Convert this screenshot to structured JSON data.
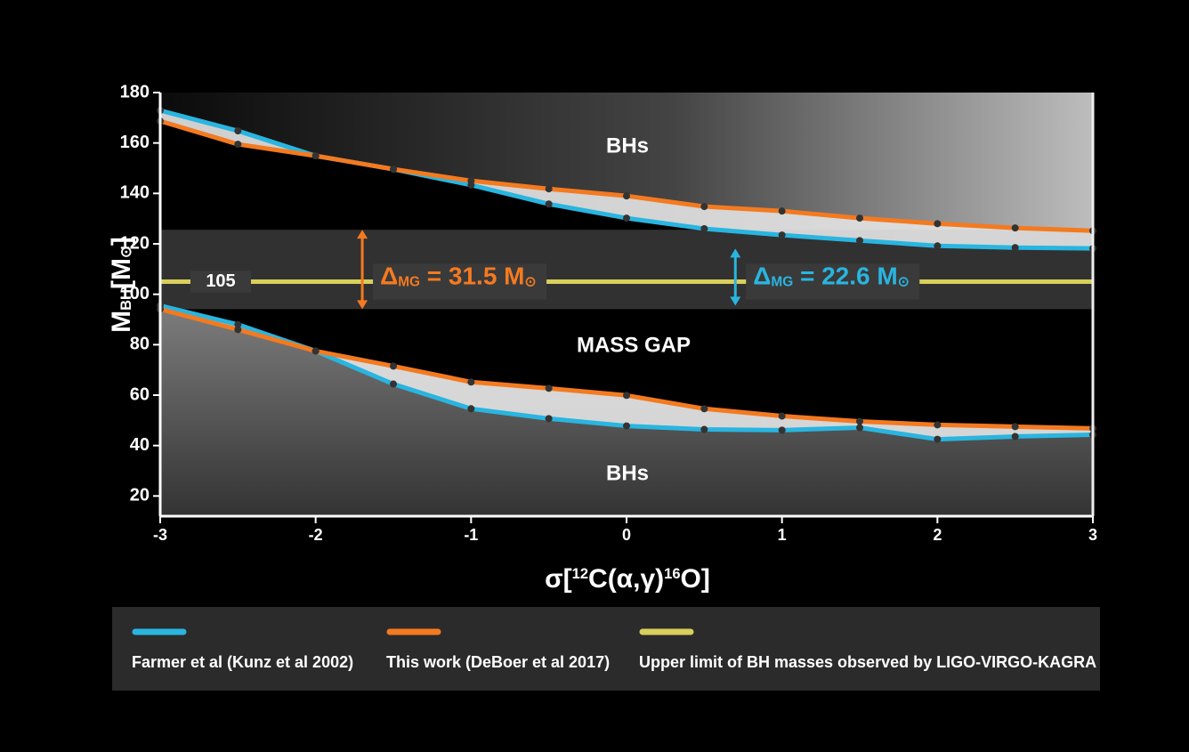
{
  "chart_data": {
    "type": "band-line",
    "x": [
      -3,
      -2.5,
      -2,
      -1.5,
      -1,
      -0.5,
      0,
      0.5,
      1,
      1.5,
      2,
      2.5,
      3
    ],
    "series": [
      {
        "name": "Farmer et al (Kunz et al 2002)",
        "color": "#29b5e0",
        "upper": [
          172.9,
          164.8,
          154.9,
          149.6,
          143.3,
          135.8,
          130.2,
          126,
          123.5,
          121.3,
          119.2,
          118.5,
          118.2
        ],
        "lower": [
          95.5,
          88,
          77.5,
          64.4,
          54.6,
          50.7,
          47.8,
          46.4,
          46.1,
          47.1,
          42.5,
          43.6,
          44.3
        ]
      },
      {
        "name": "This work (DeBoer et al 2017)",
        "color": "#f47a20",
        "upper": [
          168.7,
          159.5,
          154.9,
          149.6,
          145,
          141.8,
          139,
          134.8,
          133,
          130.2,
          128,
          126.3,
          125.2
        ],
        "lower": [
          94.1,
          86,
          77.5,
          71.5,
          65.2,
          62.7,
          59.9,
          54.6,
          51.7,
          49.6,
          48.2,
          47.5,
          46.8
        ]
      }
    ],
    "reference_line": {
      "name": "Upper limit of BH masses observed by LIGO-VIRGO-KAGRA",
      "value": 105,
      "color": "#d8cf5c"
    },
    "annotations": [
      {
        "color": "#f47a20",
        "from": 94.1,
        "to": 125.6,
        "at_x": -1.7,
        "text": [
          {
            "text": "Δ"
          },
          {
            "text": "MG",
            "sub": true
          },
          {
            "text": " = 31.5 M"
          },
          {
            "text": "⊙",
            "sub": true
          }
        ]
      },
      {
        "color": "#29b5e0",
        "from": 95.5,
        "to": 118.1,
        "at_x": 0.7,
        "text": [
          {
            "text": "Δ"
          },
          {
            "text": "MG",
            "sub": true
          },
          {
            "text": " = 22.6 M"
          },
          {
            "text": "⊙",
            "sub": true
          }
        ]
      }
    ],
    "region_labels": [
      "BHs",
      "MASS GAP",
      "BHs"
    ],
    "xlabel": [
      {
        "text": "σ["
      },
      {
        "text": "12",
        "sup": true
      },
      {
        "text": "C(α,γ)"
      },
      {
        "text": "16",
        "sup": true
      },
      {
        "text": "O]"
      }
    ],
    "ylabel": [
      {
        "text": "M"
      },
      {
        "text": "BH",
        "sub": true
      },
      {
        "text": "[M"
      },
      {
        "text": "⊙",
        "sub": true
      },
      {
        "text": "]"
      }
    ],
    "xlim": [
      -3,
      3
    ],
    "xticks": [
      -3,
      -2,
      -1,
      0,
      1,
      2,
      3
    ],
    "ylim": [
      12,
      180
    ],
    "yticks": [
      20,
      40,
      60,
      80,
      100,
      120,
      140,
      160,
      180
    ]
  }
}
